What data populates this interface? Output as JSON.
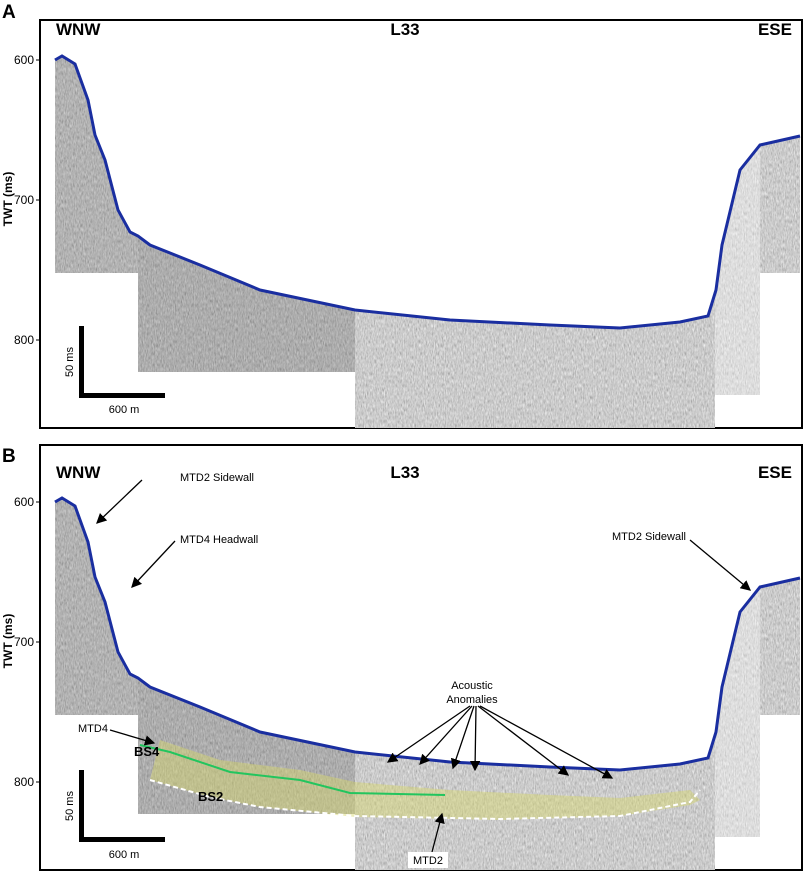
{
  "panels": [
    {
      "label": "A",
      "left": "WNW",
      "center": "L33",
      "right": "ESE",
      "y_axis_label": "TWT (ms)",
      "yticks": [
        600,
        700,
        800
      ],
      "scale_time": "50 ms",
      "scale_distance": "600 m"
    },
    {
      "label": "B",
      "left": "WNW",
      "center": "L33",
      "right": "ESE",
      "y_axis_label": "TWT (ms)",
      "yticks": [
        600,
        700,
        800
      ],
      "scale_time": "50 ms",
      "scale_distance": "600 m",
      "annotations": {
        "mtd2_sidewall_left": "MTD2 Sidewall",
        "mtd4_headwall": "MTD4 Headwall",
        "mtd2_sidewall_right": "MTD2 Sidewall",
        "acoustic_anomalies": [
          "Acoustic",
          "Anomalies"
        ],
        "mtd4": "MTD4",
        "bs4": "BS4",
        "bs2": "BS2",
        "mtd2": "MTD2"
      }
    }
  ]
}
